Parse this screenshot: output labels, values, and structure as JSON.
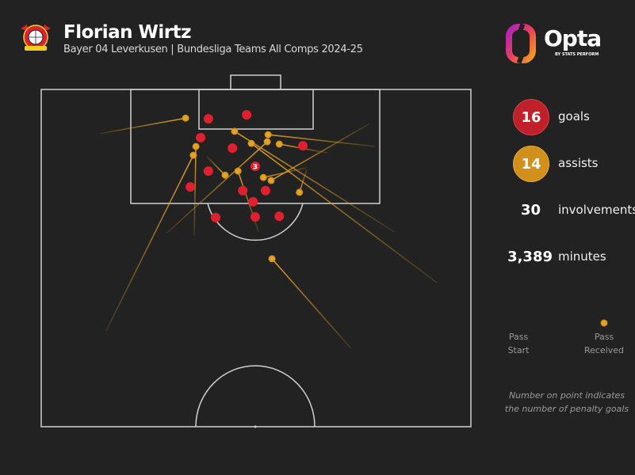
{
  "header": {
    "title": "Florian Wirtz",
    "subtitle": "Bayer 04 Leverkusen | Bundesliga Teams All Comps 2024-25",
    "badge_text": "Bayer 04 Leverkusen",
    "brand": "Opta",
    "brand_sub": "BY STATS PERFORM"
  },
  "stats": {
    "goals_value": "16",
    "goals_label": "goals",
    "assists_value": "14",
    "assists_label": "assists",
    "involvements_value": "30",
    "involvements_label": "involvements",
    "minutes_value": "3,389",
    "minutes_label": "minutes"
  },
  "legend": {
    "start_line1": "Pass",
    "start_line2": "Start",
    "end_line1": "Pass",
    "end_line2": "Received",
    "note_line1": "Number on point indicates",
    "note_line2": "the number of penalty goals"
  },
  "colors": {
    "goal": "#e0202e",
    "assist": "#e3a125",
    "goal_badge": "#c0202a",
    "assist_badge": "#d18f1c",
    "background": "#222222",
    "lines": "#d0d0d0"
  },
  "chart_data": {
    "type": "scatter",
    "title": "Florian Wirtz goals and assists",
    "units": "pitch percent: x = 0-100 across width (left touchline to right), y = 0-100 from goal line (attacking half)",
    "goals": [
      {
        "x": 38.9,
        "y": 8.7
      },
      {
        "x": 47.8,
        "y": 7.5
      },
      {
        "x": 37.1,
        "y": 14.3
      },
      {
        "x": 44.5,
        "y": 17.4
      },
      {
        "x": 60.9,
        "y": 16.7
      },
      {
        "x": 38.9,
        "y": 24.2
      },
      {
        "x": 34.7,
        "y": 28.9
      },
      {
        "x": 46.9,
        "y": 30.0
      },
      {
        "x": 52.2,
        "y": 30.0
      },
      {
        "x": 49.3,
        "y": 33.3
      },
      {
        "x": 40.6,
        "y": 38.0
      },
      {
        "x": 49.8,
        "y": 37.8
      },
      {
        "x": 55.4,
        "y": 37.6
      }
    ],
    "penalty_goals": [
      {
        "x": 49.8,
        "y": 22.8,
        "count": "3"
      }
    ],
    "assists": [
      {
        "start": [
          13.7,
          13.1
        ],
        "end": [
          33.6,
          8.5
        ]
      },
      {
        "start": [
          82.3,
          42.3
        ],
        "end": [
          45.0,
          12.4
        ]
      },
      {
        "start": [
          92.1,
          57.3
        ],
        "end": [
          48.9,
          16.0
        ]
      },
      {
        "start": [
          77.7,
          16.9
        ],
        "end": [
          52.8,
          13.4
        ]
      },
      {
        "start": [
          29.3,
          42.5
        ],
        "end": [
          52.6,
          15.5
        ]
      },
      {
        "start": [
          66.6,
          18.8
        ],
        "end": [
          55.4,
          16.2
        ]
      },
      {
        "start": [
          35.6,
          43.4
        ],
        "end": [
          36.0,
          16.9
        ]
      },
      {
        "start": [
          15.1,
          71.6
        ],
        "end": [
          35.4,
          19.5
        ]
      },
      {
        "start": [
          38.6,
          20.0
        ],
        "end": [
          42.8,
          25.4
        ]
      },
      {
        "start": [
          50.6,
          42.3
        ],
        "end": [
          45.8,
          24.2
        ]
      },
      {
        "start": [
          61.8,
          23.2
        ],
        "end": [
          51.7,
          26.1
        ]
      },
      {
        "start": [
          76.2,
          10.3
        ],
        "end": [
          53.5,
          27.0
        ]
      },
      {
        "start": [
          61.8,
          23.7
        ],
        "end": [
          60.1,
          30.5
        ]
      },
      {
        "start": [
          72.1,
          76.8
        ],
        "end": [
          53.7,
          50.2
        ]
      }
    ]
  }
}
